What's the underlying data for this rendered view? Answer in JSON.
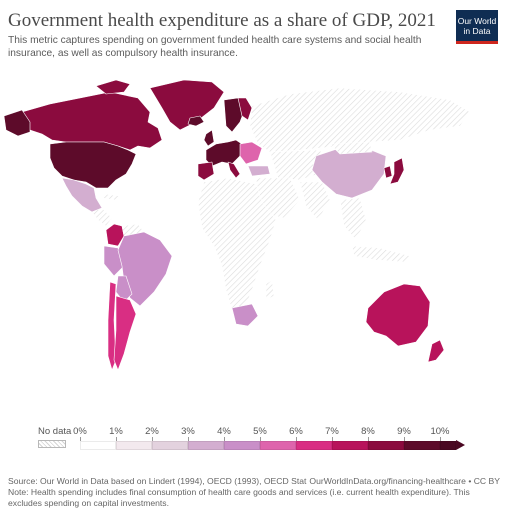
{
  "title": "Government health expenditure as a share of GDP, 2021",
  "subtitle": "This metric captures spending on government funded health care systems and social health insurance, as well as compulsory health insurance.",
  "logo": {
    "line1": "Our World",
    "line2": "in Data"
  },
  "legend": {
    "no_data_label": "No data",
    "ticks": [
      "0%",
      "1%",
      "2%",
      "3%",
      "4%",
      "5%",
      "6%",
      "7%",
      "8%",
      "9%",
      "10%"
    ],
    "colors": [
      "#ffffff",
      "#f3e9ee",
      "#e3d2de",
      "#d3aed0",
      "#c98fc8",
      "#de64ac",
      "#d92e83",
      "#b8135b",
      "#8b0b3e",
      "#5d0b2a"
    ],
    "overflow_color": "#4a0822"
  },
  "map_colors": {
    "no_data": "#f3f3f3",
    "usa": "#5d0b2a",
    "canada": "#8b0b3e",
    "greenland": "#8b0b3e",
    "mexico": "#d3aed0",
    "colombia": "#b8135b",
    "brazil": "#c98fc8",
    "argentina": "#d92e83",
    "china": "#d3aed0",
    "japan": "#8b0b3e",
    "australia": "#b8135b",
    "new_zealand": "#b8135b",
    "south_africa": "#c98fc8",
    "western_europe": "#5d0b2a",
    "eastern_europe": "#de64ac"
  },
  "source": "Source: Our World in Data based on Lindert (1994), OECD (1993), OECD Stat",
  "url": "OurWorldInData.org/financing-healthcare • CC BY",
  "note": "Note: Health spending includes final consumption of health care goods and services (i.e. current health expenditure). This excludes spending on capital investments."
}
